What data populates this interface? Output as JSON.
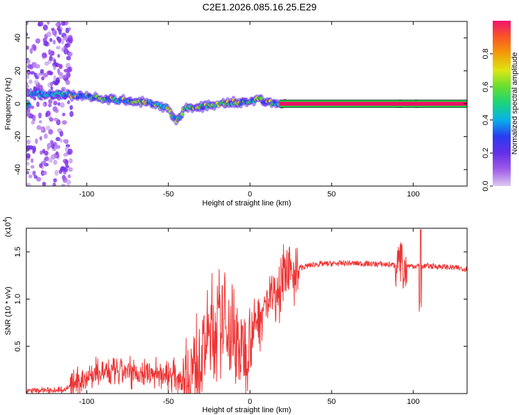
{
  "title": "C2E1.2026.085.16.25.E29",
  "chart_data": [
    {
      "type": "heatmap",
      "xlabel": "Height of straight line (km)",
      "ylabel": "Frequency (Hz)",
      "xlim": [
        -137,
        133
      ],
      "ylim": [
        -50,
        50
      ],
      "xticks": [
        -100,
        -50,
        0,
        50,
        100
      ],
      "yticks": [
        -40,
        -20,
        0,
        20,
        40
      ],
      "xtick_labels": [
        "-100",
        "-50",
        "0",
        "50",
        "100"
      ],
      "ytick_labels": [
        "-40",
        "-20",
        "0",
        "20",
        "40"
      ],
      "colorbar": {
        "label": "Normalized spectral amplitude",
        "range": [
          0,
          1
        ],
        "ticks": [
          0.0,
          0.2,
          0.4,
          0.6,
          0.8
        ],
        "tick_labels": [
          "0.0",
          "0.2",
          "0.4",
          "0.6",
          "0.8"
        ]
      },
      "ridge": [
        {
          "x": -135,
          "f": 6
        },
        {
          "x": -120,
          "f": 6
        },
        {
          "x": -110,
          "f": 5
        },
        {
          "x": -100,
          "f": 5
        },
        {
          "x": -90,
          "f": 3
        },
        {
          "x": -80,
          "f": 2
        },
        {
          "x": -70,
          "f": 2
        },
        {
          "x": -60,
          "f": 0
        },
        {
          "x": -50,
          "f": -3
        },
        {
          "x": -45,
          "f": -11
        },
        {
          "x": -40,
          "f": -3
        },
        {
          "x": -30,
          "f": -2
        },
        {
          "x": -20,
          "f": 0
        },
        {
          "x": -10,
          "f": 1
        },
        {
          "x": 0,
          "f": 1
        },
        {
          "x": 5,
          "f": 3
        },
        {
          "x": 10,
          "f": 1
        },
        {
          "x": 20,
          "f": 0
        },
        {
          "x": 133,
          "f": 0
        }
      ]
    },
    {
      "type": "line",
      "xlabel": "Height of straight line (km)",
      "ylabel": "SNR (10 * v/v)",
      "multiplier_label": "(x10",
      "multiplier_exp": "4",
      "multiplier_close": ")",
      "xlim": [
        -137,
        133
      ],
      "ylim": [
        0,
        1.75
      ],
      "xticks": [
        -100,
        -50,
        0,
        50,
        100
      ],
      "yticks": [
        0.5,
        1.0,
        1.5
      ],
      "xtick_labels": [
        "-100",
        "-50",
        "0",
        "50",
        "100"
      ],
      "ytick_labels": [
        "0.5",
        "1.0",
        "1.5"
      ],
      "series": [
        {
          "name": "SNR",
          "color": "#ee3333",
          "envelope": [
            {
              "x": -137,
              "y": 0.03
            },
            {
              "x": -115,
              "y": 0.04
            },
            {
              "x": -110,
              "y": 0.07
            },
            {
              "x": -100,
              "y": 0.18
            },
            {
              "x": -90,
              "y": 0.22
            },
            {
              "x": -80,
              "y": 0.22
            },
            {
              "x": -70,
              "y": 0.22
            },
            {
              "x": -60,
              "y": 0.21
            },
            {
              "x": -50,
              "y": 0.2
            },
            {
              "x": -40,
              "y": 0.18
            },
            {
              "x": -35,
              "y": 0.25
            },
            {
              "x": -30,
              "y": 0.4
            },
            {
              "x": -25,
              "y": 0.6
            },
            {
              "x": -20,
              "y": 0.7
            },
            {
              "x": -15,
              "y": 0.75
            },
            {
              "x": -10,
              "y": 0.6
            },
            {
              "x": -5,
              "y": 0.45
            },
            {
              "x": 0,
              "y": 0.6
            },
            {
              "x": 5,
              "y": 0.8
            },
            {
              "x": 10,
              "y": 0.95
            },
            {
              "x": 15,
              "y": 1.08
            },
            {
              "x": 20,
              "y": 1.2
            },
            {
              "x": 25,
              "y": 1.28
            },
            {
              "x": 30,
              "y": 1.33
            },
            {
              "x": 40,
              "y": 1.37
            },
            {
              "x": 60,
              "y": 1.38
            },
            {
              "x": 80,
              "y": 1.37
            },
            {
              "x": 90,
              "y": 1.36
            },
            {
              "x": 100,
              "y": 1.35
            },
            {
              "x": 110,
              "y": 1.35
            },
            {
              "x": 120,
              "y": 1.34
            },
            {
              "x": 133,
              "y": 1.32
            }
          ]
        }
      ]
    }
  ],
  "colors": {
    "snr_line": "#ee3333",
    "ridge_line": "#ee1166"
  }
}
